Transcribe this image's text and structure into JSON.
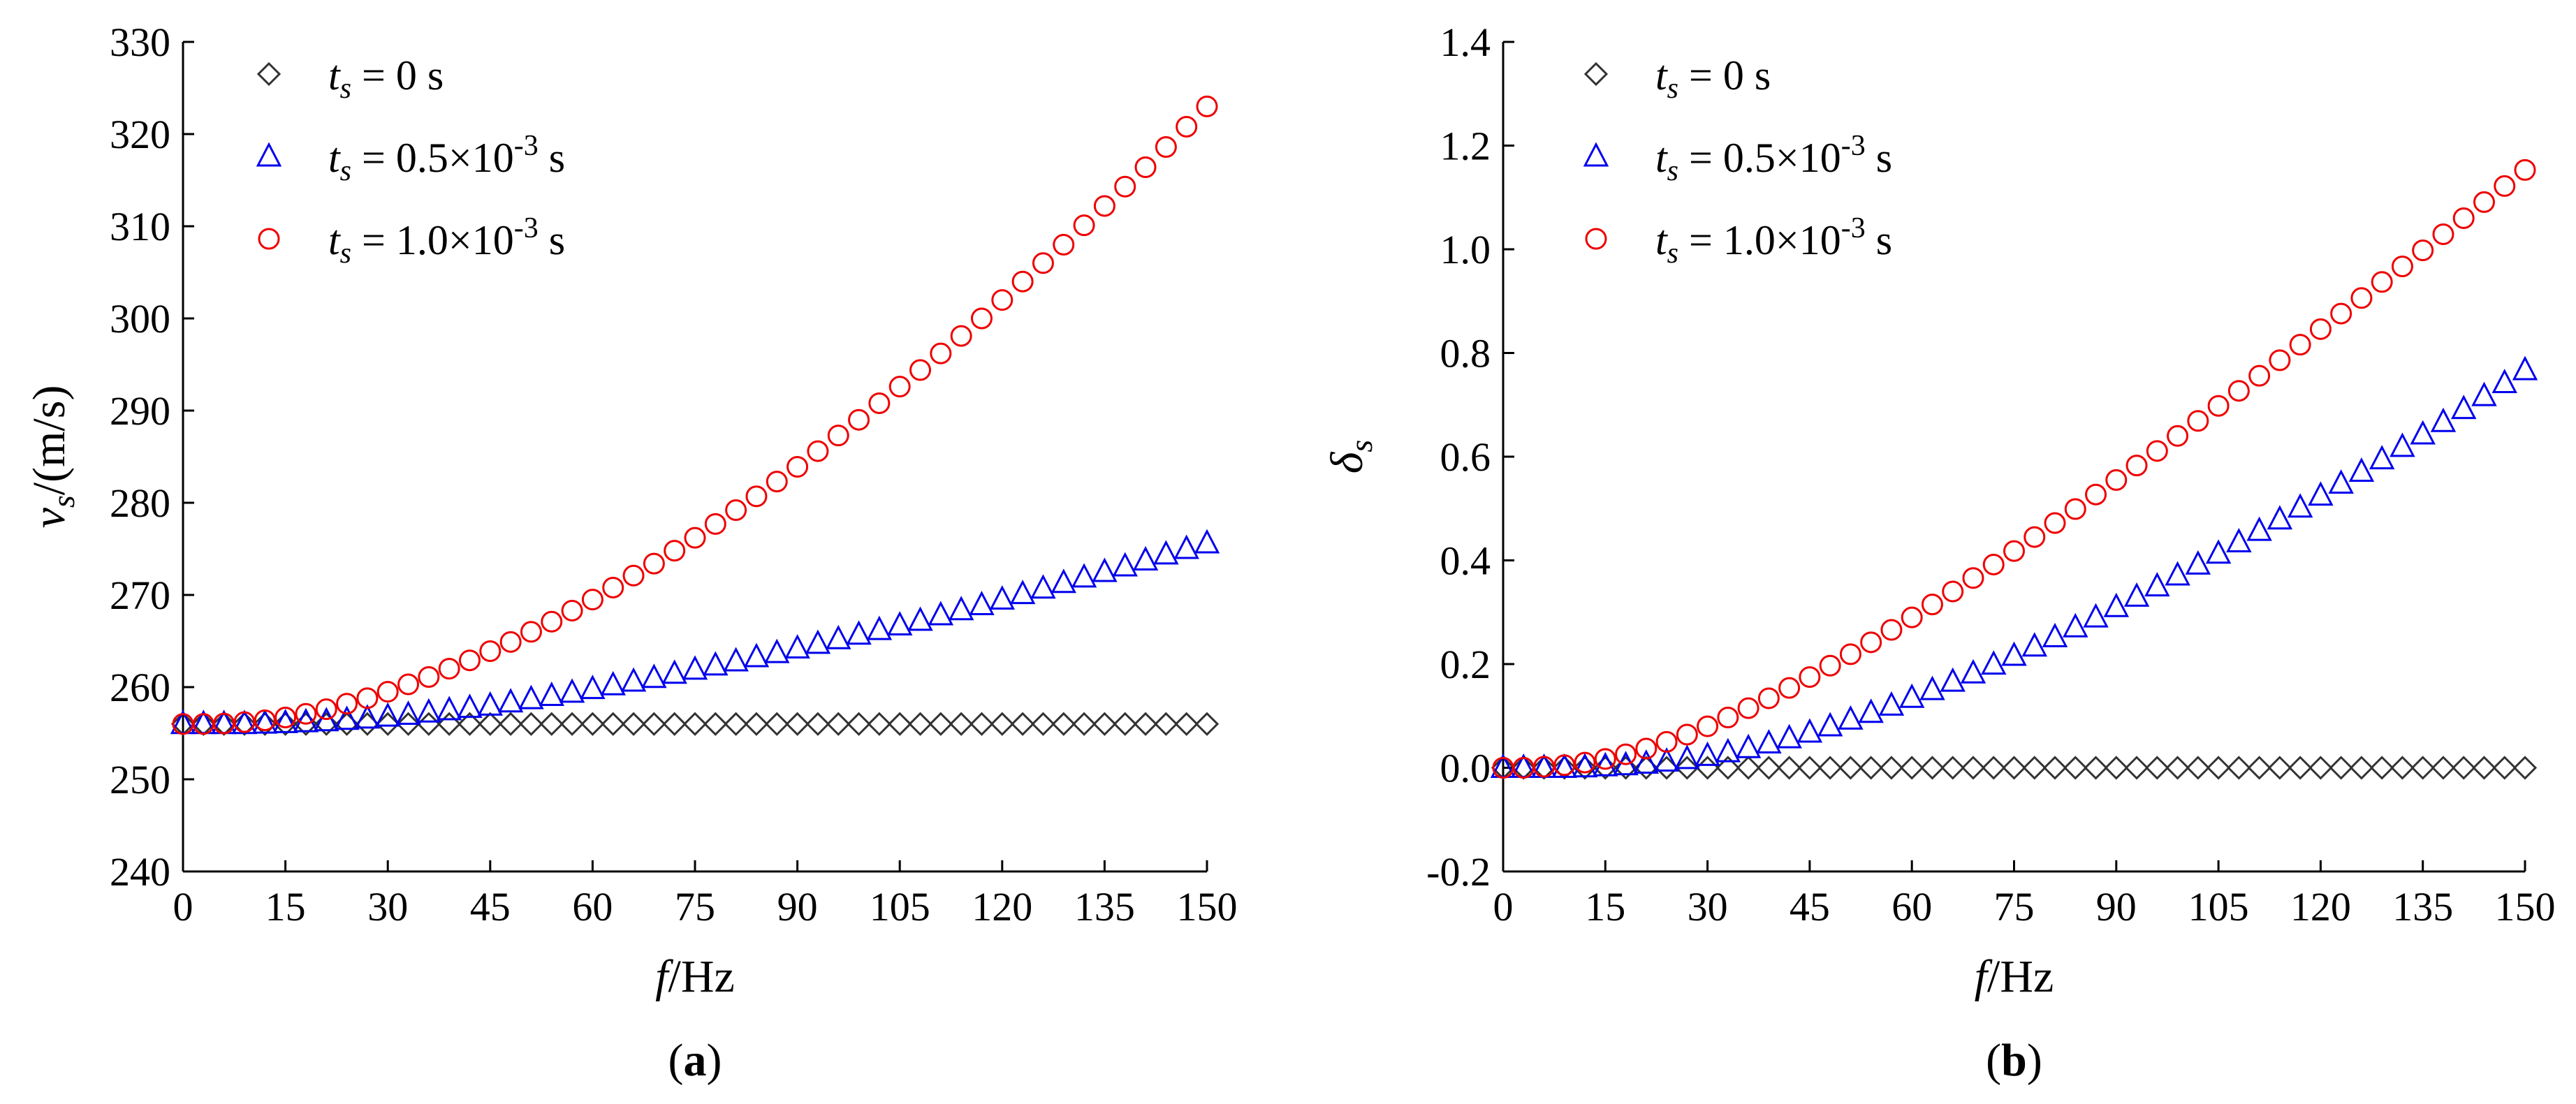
{
  "chart_data": [
    {
      "type": "scatter",
      "panel": "(a)",
      "panel_letter": "a",
      "xlabel_var": "f",
      "xlabel_unit": "/Hz",
      "ylabel_var": "v",
      "ylabel_sub": "s",
      "ylabel_unit": "/(m/s)",
      "xlim": [
        0,
        150
      ],
      "ylim": [
        240,
        330
      ],
      "xticks": [
        0,
        15,
        30,
        45,
        60,
        75,
        90,
        105,
        120,
        135,
        150
      ],
      "yticks": [
        240,
        250,
        260,
        270,
        280,
        290,
        300,
        310,
        320,
        330
      ],
      "ytick_labels": [
        "240",
        "250",
        "260",
        "270",
        "280",
        "290",
        "300",
        "310",
        "320",
        "330"
      ],
      "legend_position": "top-left",
      "x": [
        0,
        3,
        6,
        9,
        12,
        15,
        18,
        21,
        24,
        27,
        30,
        33,
        36,
        39,
        42,
        45,
        48,
        51,
        54,
        57,
        60,
        63,
        66,
        69,
        72,
        75,
        78,
        81,
        84,
        87,
        90,
        93,
        96,
        99,
        102,
        105,
        108,
        111,
        114,
        117,
        120,
        123,
        126,
        129,
        132,
        135,
        138,
        141,
        144,
        147,
        150
      ],
      "series": [
        {
          "name_var": "t",
          "name_sub": "s",
          "name_text": " = 0 s",
          "name_exp": "",
          "marker": "diamond",
          "color": "#333333",
          "values": [
            256.0,
            256.0,
            256.0,
            256.0,
            256.0,
            256.0,
            256.0,
            256.0,
            256.0,
            256.0,
            256.0,
            256.0,
            256.0,
            256.0,
            256.0,
            256.0,
            256.0,
            256.0,
            256.0,
            256.0,
            256.0,
            256.0,
            256.0,
            256.0,
            256.0,
            256.0,
            256.0,
            256.0,
            256.0,
            256.0,
            256.0,
            256.0,
            256.0,
            256.0,
            256.0,
            256.0,
            256.0,
            256.0,
            256.0,
            256.0,
            256.0,
            256.0,
            256.0,
            256.0,
            256.0,
            256.0,
            256.0,
            256.0,
            256.0,
            256.0,
            256.0
          ]
        },
        {
          "name_var": "t",
          "name_sub": "s",
          "name_text": " = 0.5×10",
          "name_exp": "-3",
          "name_suffix": " s",
          "marker": "triangle",
          "color": "#0000ee",
          "values": [
            256.0,
            256.0,
            256.0,
            256.0,
            256.05,
            256.1,
            256.2,
            256.3,
            256.45,
            256.6,
            256.8,
            257.0,
            257.25,
            257.5,
            257.75,
            258.0,
            258.35,
            258.7,
            259.05,
            259.4,
            259.8,
            260.2,
            260.6,
            261.0,
            261.45,
            261.9,
            262.35,
            262.8,
            263.25,
            263.7,
            264.2,
            264.7,
            265.2,
            265.7,
            266.2,
            266.7,
            267.2,
            267.8,
            268.35,
            268.9,
            269.5,
            270.1,
            270.7,
            271.3,
            271.9,
            272.5,
            273.1,
            273.75,
            274.4,
            275.0,
            275.6
          ]
        },
        {
          "name_var": "t",
          "name_sub": "s",
          "name_text": " = 1.0×10",
          "name_exp": "-3",
          "name_suffix": " s",
          "marker": "circle",
          "color": "#ee0000",
          "values": [
            256.0,
            256.0,
            256.05,
            256.2,
            256.4,
            256.7,
            257.1,
            257.6,
            258.2,
            258.8,
            259.5,
            260.3,
            261.1,
            262.0,
            262.9,
            263.9,
            264.9,
            266.0,
            267.1,
            268.3,
            269.5,
            270.8,
            272.1,
            273.4,
            274.8,
            276.2,
            277.7,
            279.2,
            280.7,
            282.3,
            283.9,
            285.6,
            287.3,
            289.0,
            290.8,
            292.6,
            294.4,
            296.2,
            298.1,
            300.0,
            302.0,
            304.0,
            306.0,
            308.0,
            310.1,
            312.2,
            314.3,
            316.4,
            318.6,
            320.8,
            323.0
          ]
        }
      ]
    },
    {
      "type": "scatter",
      "panel": "(b)",
      "panel_letter": "b",
      "xlabel_var": "f",
      "xlabel_unit": "/Hz",
      "ylabel_var": "δ",
      "ylabel_sub": "s",
      "ylabel_unit": "",
      "xlim": [
        0,
        150
      ],
      "ylim": [
        -0.2,
        1.4
      ],
      "xticks": [
        0,
        15,
        30,
        45,
        60,
        75,
        90,
        105,
        120,
        135,
        150
      ],
      "yticks": [
        -0.2,
        0.0,
        0.2,
        0.4,
        0.6,
        0.8,
        1.0,
        1.2,
        1.4
      ],
      "ytick_labels": [
        "-0.2",
        "0.0",
        "0.2",
        "0.4",
        "0.6",
        "0.8",
        "1.0",
        "1.2",
        "1.4"
      ],
      "legend_position": "top-left",
      "x": [
        0,
        3,
        6,
        9,
        12,
        15,
        18,
        21,
        24,
        27,
        30,
        33,
        36,
        39,
        42,
        45,
        48,
        51,
        54,
        57,
        60,
        63,
        66,
        69,
        72,
        75,
        78,
        81,
        84,
        87,
        90,
        93,
        96,
        99,
        102,
        105,
        108,
        111,
        114,
        117,
        120,
        123,
        126,
        129,
        132,
        135,
        138,
        141,
        144,
        147,
        150
      ],
      "series": [
        {
          "name_var": "t",
          "name_sub": "s",
          "name_text": " = 0 s",
          "name_exp": "",
          "marker": "diamond",
          "color": "#333333",
          "values": [
            0.0,
            0.0,
            0.0,
            0.0,
            0.0,
            0.0,
            0.0,
            0.0,
            0.0,
            0.0,
            0.0,
            0.0,
            0.0,
            0.0,
            0.0,
            0.0,
            0.0,
            0.0,
            0.0,
            0.0,
            0.0,
            0.0,
            0.0,
            0.0,
            0.0,
            0.0,
            0.0,
            0.0,
            0.0,
            0.0,
            0.0,
            0.0,
            0.0,
            0.0,
            0.0,
            0.0,
            0.0,
            0.0,
            0.0,
            0.0,
            0.0,
            0.0,
            0.0,
            0.0,
            0.0,
            0.0,
            0.0,
            0.0,
            0.0,
            0.0,
            0.0
          ]
        },
        {
          "name_var": "t",
          "name_sub": "s",
          "name_text": " = 0.5×10",
          "name_exp": "-3",
          "name_suffix": " s",
          "marker": "triangle",
          "color": "#0000ee",
          "values": [
            0.0,
            0.0,
            0.0,
            0.0,
            0.001,
            0.003,
            0.005,
            0.008,
            0.012,
            0.017,
            0.023,
            0.03,
            0.038,
            0.047,
            0.057,
            0.068,
            0.08,
            0.093,
            0.106,
            0.12,
            0.135,
            0.15,
            0.166,
            0.182,
            0.199,
            0.216,
            0.234,
            0.252,
            0.271,
            0.29,
            0.31,
            0.33,
            0.35,
            0.371,
            0.392,
            0.413,
            0.435,
            0.457,
            0.479,
            0.502,
            0.525,
            0.548,
            0.571,
            0.595,
            0.619,
            0.643,
            0.667,
            0.692,
            0.717,
            0.742,
            0.767
          ]
        },
        {
          "name_var": "t",
          "name_sub": "s",
          "name_text": " = 1.0×10",
          "name_exp": "-3",
          "name_suffix": " s",
          "marker": "circle",
          "color": "#ee0000",
          "values": [
            0.0,
            0.0,
            0.002,
            0.005,
            0.01,
            0.017,
            0.026,
            0.037,
            0.05,
            0.064,
            0.08,
            0.097,
            0.115,
            0.134,
            0.154,
            0.175,
            0.197,
            0.219,
            0.242,
            0.266,
            0.29,
            0.315,
            0.34,
            0.366,
            0.392,
            0.418,
            0.445,
            0.472,
            0.499,
            0.527,
            0.555,
            0.583,
            0.611,
            0.64,
            0.669,
            0.698,
            0.727,
            0.756,
            0.786,
            0.816,
            0.846,
            0.876,
            0.906,
            0.937,
            0.967,
            0.998,
            1.029,
            1.06,
            1.091,
            1.122,
            1.153
          ]
        }
      ]
    }
  ]
}
